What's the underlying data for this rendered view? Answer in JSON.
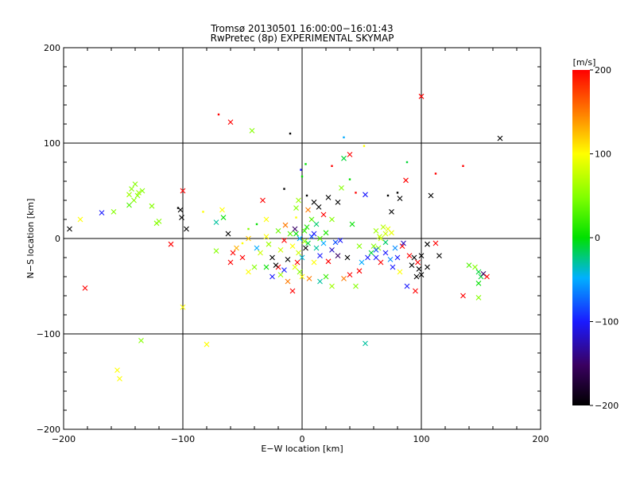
{
  "title_line1": "Tromsø 20130501 16:00:00−16:01:43",
  "title_line2": "RwPretec (8p) EXPERIMENTAL SKYMAP",
  "chart_data": {
    "type": "scatter",
    "xlabel": "E−W location [km]",
    "ylabel": "N−S location [km]",
    "xlim": [
      -200,
      200
    ],
    "ylim": [
      -200,
      200
    ],
    "xticks": [
      "−200",
      "−100",
      "0",
      "100",
      "200"
    ],
    "yticks": [
      "−200",
      "−100",
      "0",
      "100",
      "200"
    ],
    "grid": true,
    "colorbar": {
      "label": "[m/s]",
      "range": [
        -200,
        200
      ],
      "ticks": [
        "−200",
        "−100",
        "0",
        "100",
        "200"
      ],
      "colormap": "rainbow"
    },
    "points": [
      [
        100,
        149,
        200,
        "x"
      ],
      [
        -70,
        130,
        200,
        "d"
      ],
      [
        -60,
        122,
        200,
        "x"
      ],
      [
        -42,
        113,
        50,
        "x"
      ],
      [
        -10,
        110,
        -200,
        "d"
      ],
      [
        35,
        106,
        -50,
        "d"
      ],
      [
        166,
        105,
        -200,
        "x"
      ],
      [
        52,
        97,
        100,
        "d"
      ],
      [
        40,
        88,
        200,
        "x"
      ],
      [
        35,
        84,
        -10,
        "x"
      ],
      [
        88,
        80,
        -10,
        "d"
      ],
      [
        25,
        76,
        200,
        "d"
      ],
      [
        135,
        76,
        200,
        "d"
      ],
      [
        3,
        78,
        0,
        "d"
      ],
      [
        -1,
        72,
        -100,
        "d"
      ],
      [
        40,
        62,
        0,
        "d"
      ],
      [
        87,
        61,
        200,
        "x"
      ],
      [
        0,
        65,
        0,
        "d"
      ],
      [
        112,
        68,
        200,
        "d"
      ],
      [
        -140,
        57,
        50,
        "x"
      ],
      [
        -143,
        52,
        50,
        "x"
      ],
      [
        -138,
        45,
        50,
        "x"
      ],
      [
        -145,
        46,
        60,
        "x"
      ],
      [
        -137,
        48,
        60,
        "x"
      ],
      [
        -134,
        50,
        50,
        "x"
      ],
      [
        -141,
        40,
        50,
        "x"
      ],
      [
        -145,
        35,
        30,
        "x"
      ],
      [
        -158,
        28,
        50,
        "x"
      ],
      [
        -168,
        27,
        -100,
        "x"
      ],
      [
        -126,
        34,
        50,
        "x"
      ],
      [
        -120,
        18,
        50,
        "x"
      ],
      [
        -122,
        16,
        50,
        "x"
      ],
      [
        -186,
        20,
        100,
        "x"
      ],
      [
        -195,
        10,
        -200,
        "x"
      ],
      [
        -102,
        30,
        -200,
        "x"
      ],
      [
        -101,
        22,
        -200,
        "x"
      ],
      [
        -100,
        50,
        200,
        "x"
      ],
      [
        -104,
        32,
        -200,
        "d"
      ],
      [
        -97,
        10,
        -200,
        "x"
      ],
      [
        -110,
        -6,
        200,
        "x"
      ],
      [
        -83,
        28,
        100,
        "d"
      ],
      [
        -72,
        17,
        -30,
        "x"
      ],
      [
        -67,
        30,
        100,
        "x"
      ],
      [
        -72,
        -13,
        50,
        "x"
      ],
      [
        -66,
        22,
        0,
        "x"
      ],
      [
        -62,
        5,
        -200,
        "x"
      ],
      [
        -58,
        -15,
        200,
        "x"
      ],
      [
        -50,
        -5,
        100,
        "d"
      ],
      [
        -45,
        10,
        50,
        "d"
      ],
      [
        -38,
        15,
        0,
        "d"
      ],
      [
        -30,
        20,
        100,
        "x"
      ],
      [
        -25,
        -20,
        -200,
        "x"
      ],
      [
        -20,
        -30,
        200,
        "x"
      ],
      [
        -15,
        -33,
        -100,
        "x"
      ],
      [
        -33,
        40,
        200,
        "x"
      ],
      [
        -15,
        52,
        -200,
        "d"
      ],
      [
        -5,
        22,
        100,
        "d"
      ],
      [
        10,
        38,
        -200,
        "x"
      ],
      [
        4,
        45,
        -200,
        "d"
      ],
      [
        22,
        43,
        -200,
        "x"
      ],
      [
        30,
        38,
        -200,
        "x"
      ],
      [
        33,
        53,
        50,
        "x"
      ],
      [
        53,
        46,
        -100,
        "x"
      ],
      [
        45,
        48,
        200,
        "d"
      ],
      [
        72,
        45,
        -200,
        "d"
      ],
      [
        80,
        48,
        -200,
        "d"
      ],
      [
        82,
        42,
        -200,
        "x"
      ],
      [
        108,
        45,
        -200,
        "x"
      ],
      [
        75,
        28,
        -200,
        "x"
      ],
      [
        70,
        -4,
        -20,
        "x"
      ],
      [
        65,
        2,
        70,
        "x"
      ],
      [
        70,
        5,
        80,
        "x"
      ],
      [
        60,
        -8,
        50,
        "x"
      ],
      [
        72,
        10,
        90,
        "x"
      ],
      [
        58,
        -15,
        -10,
        "x"
      ],
      [
        62,
        -20,
        -100,
        "x"
      ],
      [
        74,
        -22,
        -60,
        "x"
      ],
      [
        80,
        -20,
        -100,
        "x"
      ],
      [
        84,
        -8,
        200,
        "x"
      ],
      [
        90,
        -18,
        200,
        "x"
      ],
      [
        92,
        -28,
        -200,
        "x"
      ],
      [
        98,
        -32,
        -200,
        "x"
      ],
      [
        100,
        -38,
        -200,
        "x"
      ],
      [
        105,
        -6,
        -200,
        "x"
      ],
      [
        112,
        -5,
        200,
        "x"
      ],
      [
        115,
        -18,
        -200,
        "x"
      ],
      [
        97,
        -25,
        200,
        "x"
      ],
      [
        88,
        -50,
        -100,
        "x"
      ],
      [
        95,
        -55,
        200,
        "x"
      ],
      [
        100,
        -18,
        -200,
        "x"
      ],
      [
        105,
        -30,
        -200,
        "x"
      ],
      [
        148,
        -35,
        -10,
        "x"
      ],
      [
        150,
        -40,
        -10,
        "x"
      ],
      [
        145,
        -30,
        50,
        "x"
      ],
      [
        152,
        -37,
        -150,
        "x"
      ],
      [
        148,
        -47,
        0,
        "x"
      ],
      [
        155,
        -40,
        200,
        "x"
      ],
      [
        140,
        -28,
        30,
        "x"
      ],
      [
        148,
        -62,
        50,
        "x"
      ],
      [
        135,
        -60,
        200,
        "x"
      ],
      [
        -182,
        -52,
        200,
        "x"
      ],
      [
        -100,
        -72,
        100,
        "x"
      ],
      [
        -135,
        -107,
        50,
        "x"
      ],
      [
        -80,
        -111,
        100,
        "x"
      ],
      [
        -155,
        -138,
        100,
        "x"
      ],
      [
        -153,
        -147,
        100,
        "x"
      ],
      [
        53,
        -110,
        -30,
        "x"
      ],
      [
        -5,
        5,
        0,
        "x"
      ],
      [
        -2,
        0,
        -50,
        "x"
      ],
      [
        2,
        8,
        20,
        "x"
      ],
      [
        5,
        -5,
        -10,
        "x"
      ],
      [
        -8,
        -8,
        100,
        "x"
      ],
      [
        8,
        2,
        -80,
        "x"
      ],
      [
        -3,
        -15,
        80,
        "x"
      ],
      [
        4,
        12,
        10,
        "x"
      ],
      [
        -10,
        5,
        30,
        "x"
      ],
      [
        12,
        -10,
        -30,
        "x"
      ],
      [
        -15,
        -2,
        200,
        "x"
      ],
      [
        10,
        -25,
        100,
        "x"
      ],
      [
        -6,
        -30,
        90,
        "x"
      ],
      [
        15,
        -18,
        -100,
        "x"
      ],
      [
        18,
        -5,
        -50,
        "x"
      ],
      [
        20,
        6,
        10,
        "x"
      ],
      [
        25,
        -12,
        -120,
        "x"
      ],
      [
        30,
        -18,
        -150,
        "x"
      ],
      [
        28,
        -4,
        -80,
        "x"
      ],
      [
        22,
        -24,
        200,
        "x"
      ],
      [
        -12,
        -22,
        -200,
        "x"
      ],
      [
        -18,
        -12,
        80,
        "x"
      ],
      [
        0,
        -40,
        100,
        "x"
      ],
      [
        6,
        -42,
        150,
        "x"
      ],
      [
        -4,
        -25,
        200,
        "x"
      ],
      [
        3,
        -10,
        -200,
        "x"
      ],
      [
        12,
        15,
        -20,
        "x"
      ],
      [
        -14,
        14,
        150,
        "x"
      ],
      [
        40,
        -38,
        200,
        "x"
      ],
      [
        35,
        -42,
        150,
        "x"
      ],
      [
        45,
        -50,
        50,
        "x"
      ],
      [
        50,
        -25,
        -50,
        "x"
      ],
      [
        48,
        -8,
        50,
        "x"
      ],
      [
        42,
        15,
        0,
        "x"
      ],
      [
        38,
        -20,
        -200,
        "x"
      ],
      [
        55,
        -20,
        -100,
        "x"
      ],
      [
        48,
        -34,
        200,
        "x"
      ],
      [
        -8,
        -55,
        200,
        "x"
      ],
      [
        15,
        -45,
        -30,
        "x"
      ],
      [
        25,
        -50,
        60,
        "x"
      ],
      [
        20,
        -40,
        20,
        "x"
      ],
      [
        32,
        -2,
        -100,
        "x"
      ],
      [
        -25,
        -40,
        -100,
        "x"
      ],
      [
        -40,
        -30,
        50,
        "x"
      ],
      [
        -50,
        -20,
        200,
        "x"
      ],
      [
        -35,
        -15,
        80,
        "x"
      ],
      [
        -28,
        -6,
        60,
        "x"
      ],
      [
        -45,
        -35,
        100,
        "x"
      ],
      [
        -30,
        -30,
        0,
        "x"
      ],
      [
        -22,
        -28,
        -200,
        "x"
      ],
      [
        -18,
        -38,
        60,
        "x"
      ],
      [
        5,
        30,
        150,
        "x"
      ],
      [
        -5,
        32,
        50,
        "x"
      ],
      [
        8,
        20,
        30,
        "x"
      ],
      [
        18,
        25,
        200,
        "x"
      ],
      [
        25,
        20,
        50,
        "x"
      ],
      [
        -3,
        40,
        60,
        "x"
      ],
      [
        14,
        33,
        -200,
        "x"
      ],
      [
        -20,
        8,
        40,
        "x"
      ],
      [
        -12,
        -45,
        150,
        "x"
      ],
      [
        0,
        -20,
        -40,
        "x"
      ],
      [
        2,
        -3,
        60,
        "x"
      ],
      [
        -6,
        10,
        -150,
        "x"
      ],
      [
        10,
        5,
        -100,
        "x"
      ],
      [
        15,
        0,
        30,
        "x"
      ],
      [
        -2,
        -35,
        50,
        "x"
      ],
      [
        -55,
        -10,
        130,
        "x"
      ],
      [
        -60,
        -25,
        200,
        "x"
      ],
      [
        -45,
        0,
        120,
        "x"
      ],
      [
        -30,
        2,
        100,
        "x"
      ],
      [
        -38,
        -10,
        -50,
        "x"
      ],
      [
        64,
        -10,
        50,
        "x"
      ],
      [
        62,
        8,
        60,
        "x"
      ],
      [
        66,
        0,
        80,
        "x"
      ],
      [
        68,
        12,
        70,
        "x"
      ],
      [
        75,
        6,
        90,
        "x"
      ],
      [
        62,
        -12,
        -80,
        "x"
      ],
      [
        66,
        -25,
        200,
        "x"
      ],
      [
        70,
        -15,
        -100,
        "x"
      ],
      [
        78,
        -10,
        -60,
        "x"
      ],
      [
        76,
        -30,
        -100,
        "x"
      ],
      [
        82,
        -35,
        100,
        "x"
      ],
      [
        85,
        -5,
        -120,
        "x"
      ],
      [
        94,
        -20,
        -200,
        "x"
      ],
      [
        96,
        -40,
        -200,
        "x"
      ]
    ]
  }
}
